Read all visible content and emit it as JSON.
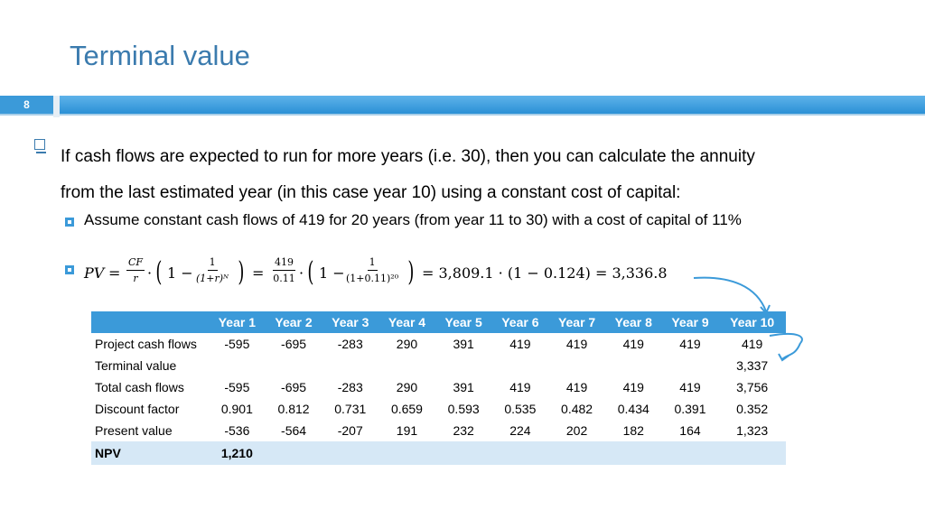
{
  "title": "Terminal value",
  "slide_number": "8",
  "bullet_main_line1": "If cash flows are expected to run for more years (i.e. 30), then you can calculate the annuity",
  "bullet_main_line2": "from the last estimated year (in this case year 10) using a constant cost of capital:",
  "sub_bullet1": "Assume constant cash flows of 419 for 20 years (from year 11 to 30) with a cost of capital of 11%",
  "formula": {
    "pv": "PV",
    "eq1": "=",
    "cf": "CF",
    "r": "r",
    "dot1": "·",
    "one1": "1 −",
    "frac1_num": "1",
    "frac1_den": "(1+r)ᴺ",
    "eq2": "=",
    "n419": "419",
    "n011": "0.11",
    "dot2": "·",
    "one2": "1 −",
    "frac2_num": "1",
    "frac2_den": "(1+0.11)²⁰",
    "result": "= 3,809.1 · (1 − 0.124) = 3,336.8"
  },
  "table": {
    "headers": [
      "",
      "Year 1",
      "Year 2",
      "Year 3",
      "Year 4",
      "Year 5",
      "Year 6",
      "Year 7",
      "Year 8",
      "Year 9",
      "Year 10"
    ],
    "rows": [
      {
        "label": "Project cash flows",
        "values": [
          "-595",
          "-695",
          "-283",
          "290",
          "391",
          "419",
          "419",
          "419",
          "419",
          "419"
        ]
      },
      {
        "label": "Terminal value",
        "values": [
          "",
          "",
          "",
          "",
          "",
          "",
          "",
          "",
          "",
          "3,337"
        ]
      },
      {
        "label": "Total cash flows",
        "values": [
          "-595",
          "-695",
          "-283",
          "290",
          "391",
          "419",
          "419",
          "419",
          "419",
          "3,756"
        ]
      },
      {
        "label": "Discount factor",
        "values": [
          "0.901",
          "0.812",
          "0.731",
          "0.659",
          "0.593",
          "0.535",
          "0.482",
          "0.434",
          "0.391",
          "0.352"
        ]
      },
      {
        "label": "Present value",
        "values": [
          "-536",
          "-564",
          "-207",
          "191",
          "232",
          "224",
          "202",
          "182",
          "164",
          "1,323"
        ]
      }
    ],
    "npv_label": "NPV",
    "npv_value": "1,210"
  },
  "colors": {
    "accent": "#3b9ad9",
    "title": "#3b7bae",
    "npv_row": "#d6e8f6"
  }
}
